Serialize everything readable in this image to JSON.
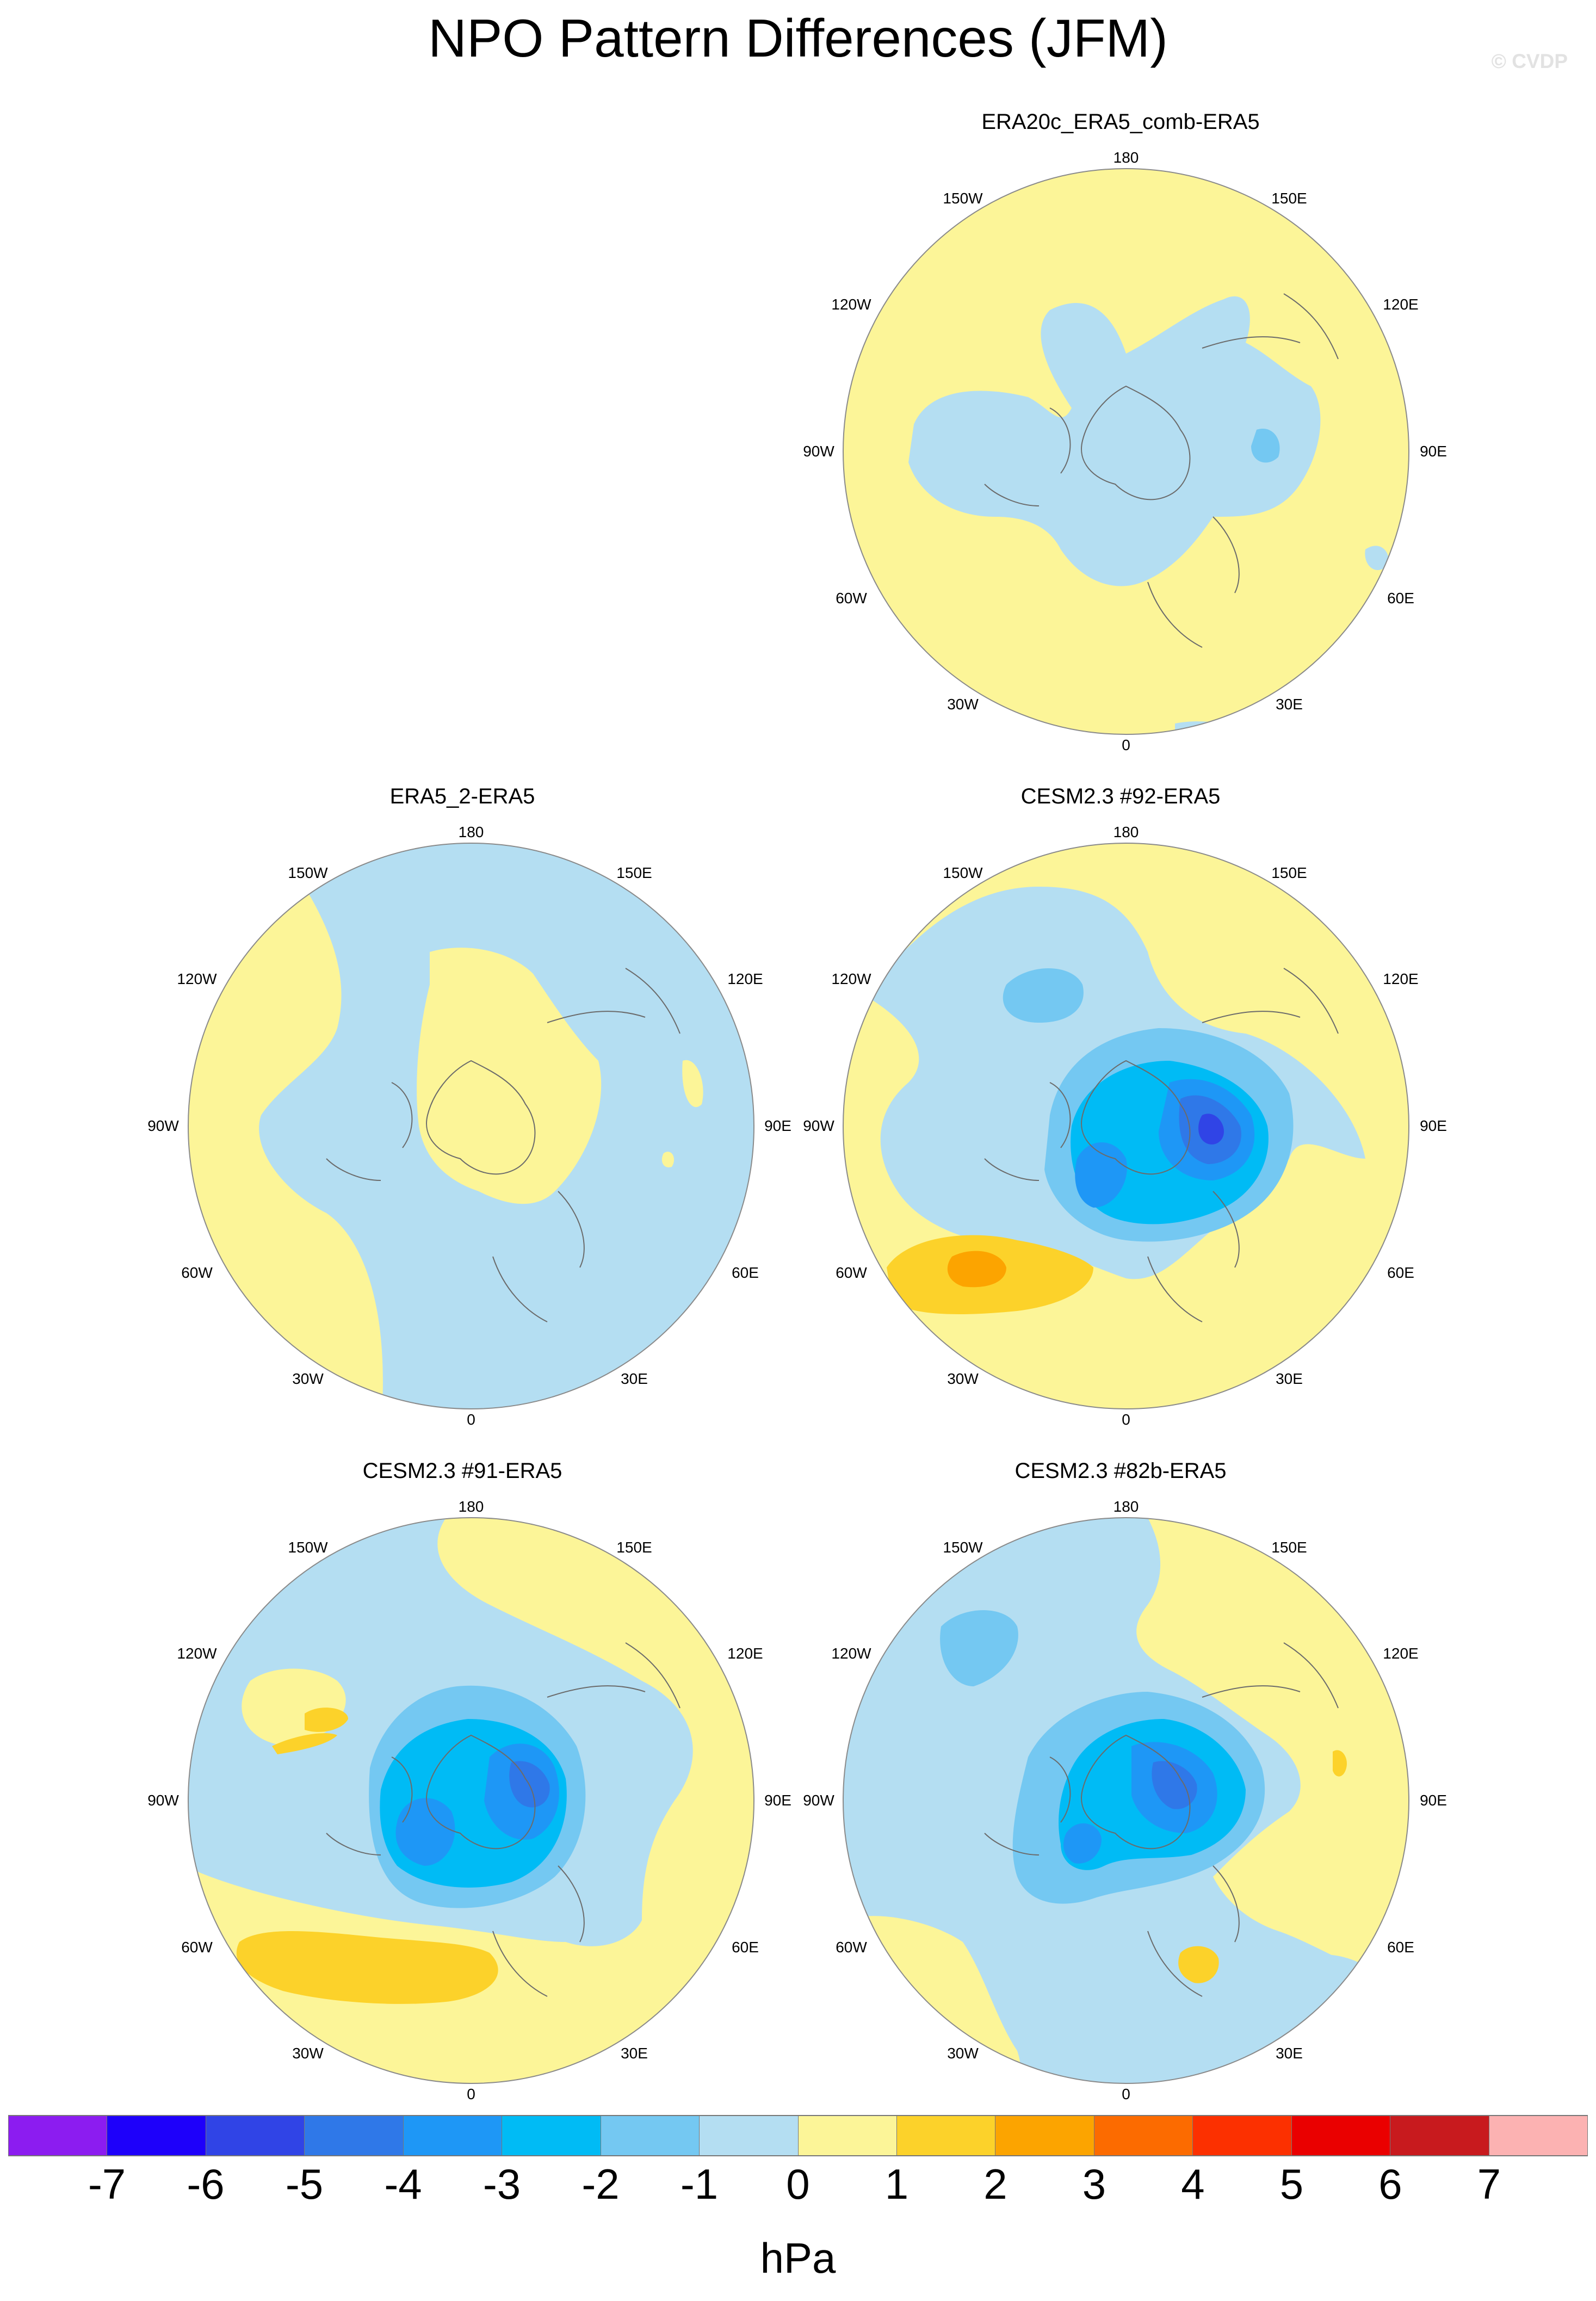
{
  "title": "NPO Pattern Differences (JFM)",
  "watermark": "© CVDP",
  "units": "hPa",
  "longitude_labels": [
    "180",
    "150E",
    "120E",
    "90E",
    "60E",
    "30E",
    "0",
    "30W",
    "60W",
    "90W",
    "120W",
    "150W"
  ],
  "colorbar": {
    "colors": [
      "#8c1cf0",
      "#1e00fa",
      "#3044e6",
      "#2f78e8",
      "#1e97f6",
      "#00bbf5",
      "#74c8f2",
      "#b4def2",
      "#fcf598",
      "#fcd22a",
      "#fca400",
      "#fc6b00",
      "#fc3000",
      "#ea0000",
      "#c81a1e",
      "#fcb2b2"
    ],
    "tick_labels": [
      "-7",
      "-6",
      "-5",
      "-4",
      "-3",
      "-2",
      "-1",
      "0",
      "1",
      "2",
      "3",
      "4",
      "5",
      "6",
      "7"
    ]
  },
  "panels": [
    {
      "title": "ERA20c_ERA5_comb-ERA5"
    },
    {
      "title": "ERA5_2-ERA5"
    },
    {
      "title": "CESM2.3 #92-ERA5"
    },
    {
      "title": "CESM2.3 #91-ERA5"
    },
    {
      "title": "CESM2.3 #82b-ERA5"
    }
  ]
}
